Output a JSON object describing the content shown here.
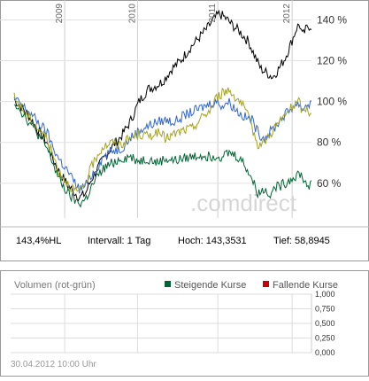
{
  "chart_data": [
    {
      "type": "line",
      "x_ticks": [
        "2009",
        "2010",
        "2011",
        "2012"
      ],
      "y_ticks": [
        "140 %",
        "120 %",
        "100 %",
        "80 %",
        "60 %"
      ],
      "y_tick_values": [
        140,
        120,
        100,
        80,
        60
      ],
      "ylim": [
        43,
        148
      ],
      "xlim": [
        0,
        1
      ],
      "grid": true,
      "watermark": ".comdirect",
      "series": [
        {
          "color": "#000000",
          "points": [
            [
              0.0,
              101
            ],
            [
              0.02,
              98
            ],
            [
              0.05,
              93
            ],
            [
              0.08,
              86
            ],
            [
              0.11,
              80
            ],
            [
              0.13,
              72
            ],
            [
              0.15,
              66
            ],
            [
              0.18,
              59
            ],
            [
              0.2,
              56
            ],
            [
              0.22,
              53
            ],
            [
              0.24,
              55
            ],
            [
              0.26,
              62
            ],
            [
              0.28,
              67
            ],
            [
              0.3,
              72
            ],
            [
              0.33,
              78
            ],
            [
              0.36,
              83
            ],
            [
              0.39,
              90
            ],
            [
              0.42,
              100
            ],
            [
              0.45,
              106
            ],
            [
              0.48,
              108
            ],
            [
              0.5,
              110
            ],
            [
              0.53,
              116
            ],
            [
              0.56,
              120
            ],
            [
              0.59,
              126
            ],
            [
              0.62,
              131
            ],
            [
              0.65,
              136
            ],
            [
              0.67,
              140
            ],
            [
              0.69,
              143
            ],
            [
              0.71,
              141
            ],
            [
              0.73,
              138
            ],
            [
              0.76,
              134
            ],
            [
              0.79,
              129
            ],
            [
              0.81,
              122
            ],
            [
              0.83,
              116
            ],
            [
              0.85,
              114
            ],
            [
              0.87,
              112
            ],
            [
              0.89,
              116
            ],
            [
              0.91,
              121
            ],
            [
              0.93,
              128
            ],
            [
              0.95,
              136
            ],
            [
              0.96,
              138
            ],
            [
              0.97,
              132
            ],
            [
              0.98,
              135
            ],
            [
              0.99,
              137
            ]
          ]
        },
        {
          "color": "#3366cc",
          "points": [
            [
              0.0,
              101
            ],
            [
              0.02,
              99
            ],
            [
              0.05,
              95
            ],
            [
              0.08,
              90
            ],
            [
              0.11,
              85
            ],
            [
              0.13,
              78
            ],
            [
              0.15,
              72
            ],
            [
              0.18,
              66
            ],
            [
              0.2,
              61
            ],
            [
              0.22,
              57
            ],
            [
              0.24,
              59
            ],
            [
              0.26,
              64
            ],
            [
              0.28,
              68
            ],
            [
              0.3,
              73
            ],
            [
              0.33,
              76
            ],
            [
              0.36,
              77
            ],
            [
              0.39,
              82
            ],
            [
              0.42,
              86
            ],
            [
              0.45,
              88
            ],
            [
              0.48,
              90
            ],
            [
              0.51,
              91
            ],
            [
              0.54,
              90
            ],
            [
              0.57,
              93
            ],
            [
              0.6,
              95
            ],
            [
              0.63,
              97
            ],
            [
              0.66,
              99
            ],
            [
              0.68,
              100
            ],
            [
              0.7,
              98
            ],
            [
              0.72,
              100
            ],
            [
              0.74,
              97
            ],
            [
              0.76,
              94
            ],
            [
              0.78,
              92
            ],
            [
              0.8,
              91
            ],
            [
              0.82,
              85
            ],
            [
              0.84,
              82
            ],
            [
              0.86,
              85
            ],
            [
              0.88,
              88
            ],
            [
              0.9,
              92
            ],
            [
              0.92,
              95
            ],
            [
              0.94,
              98
            ],
            [
              0.96,
              99
            ],
            [
              0.97,
              96
            ],
            [
              0.98,
              98
            ],
            [
              0.99,
              99
            ]
          ]
        },
        {
          "color": "#a3a322",
          "points": [
            [
              0.0,
              102
            ],
            [
              0.02,
              98
            ],
            [
              0.05,
              92
            ],
            [
              0.08,
              87
            ],
            [
              0.11,
              82
            ],
            [
              0.13,
              74
            ],
            [
              0.15,
              66
            ],
            [
              0.18,
              60
            ],
            [
              0.2,
              57
            ],
            [
              0.22,
              55
            ],
            [
              0.24,
              60
            ],
            [
              0.26,
              68
            ],
            [
              0.28,
              74
            ],
            [
              0.3,
              78
            ],
            [
              0.33,
              80
            ],
            [
              0.36,
              79
            ],
            [
              0.39,
              82
            ],
            [
              0.42,
              84
            ],
            [
              0.45,
              83
            ],
            [
              0.48,
              85
            ],
            [
              0.51,
              82
            ],
            [
              0.54,
              84
            ],
            [
              0.57,
              86
            ],
            [
              0.6,
              87
            ],
            [
              0.63,
              92
            ],
            [
              0.66,
              96
            ],
            [
              0.68,
              102
            ],
            [
              0.7,
              104
            ],
            [
              0.72,
              106
            ],
            [
              0.74,
              103
            ],
            [
              0.76,
              100
            ],
            [
              0.78,
              95
            ],
            [
              0.8,
              87
            ],
            [
              0.82,
              79
            ],
            [
              0.84,
              80
            ],
            [
              0.86,
              84
            ],
            [
              0.88,
              88
            ],
            [
              0.9,
              91
            ],
            [
              0.92,
              95
            ],
            [
              0.94,
              98
            ],
            [
              0.96,
              100
            ],
            [
              0.97,
              94
            ],
            [
              0.98,
              97
            ],
            [
              0.99,
              95
            ]
          ]
        },
        {
          "color": "#006633",
          "points": [
            [
              0.0,
              100
            ],
            [
              0.02,
              96
            ],
            [
              0.05,
              90
            ],
            [
              0.08,
              84
            ],
            [
              0.11,
              77
            ],
            [
              0.13,
              70
            ],
            [
              0.15,
              62
            ],
            [
              0.18,
              55
            ],
            [
              0.2,
              52
            ],
            [
              0.22,
              50
            ],
            [
              0.24,
              52
            ],
            [
              0.26,
              58
            ],
            [
              0.28,
              63
            ],
            [
              0.3,
              67
            ],
            [
              0.33,
              70
            ],
            [
              0.36,
              72
            ],
            [
              0.39,
              73
            ],
            [
              0.42,
              71
            ],
            [
              0.45,
              72
            ],
            [
              0.48,
              70
            ],
            [
              0.51,
              72
            ],
            [
              0.54,
              71
            ],
            [
              0.57,
              72
            ],
            [
              0.6,
              73
            ],
            [
              0.63,
              74
            ],
            [
              0.66,
              73
            ],
            [
              0.68,
              74
            ],
            [
              0.7,
              73
            ],
            [
              0.72,
              75
            ],
            [
              0.74,
              74
            ],
            [
              0.76,
              72
            ],
            [
              0.78,
              68
            ],
            [
              0.8,
              62
            ],
            [
              0.82,
              55
            ],
            [
              0.84,
              57
            ],
            [
              0.86,
              55
            ],
            [
              0.88,
              58
            ],
            [
              0.9,
              59
            ],
            [
              0.92,
              61
            ],
            [
              0.94,
              63
            ],
            [
              0.96,
              65
            ],
            [
              0.97,
              63
            ],
            [
              0.98,
              60
            ],
            [
              0.99,
              59
            ]
          ]
        }
      ]
    },
    {
      "type": "bar",
      "title": "Volumen (rot-grün)",
      "legend": [
        {
          "label": "Steigende Kurse",
          "color": "#006633"
        },
        {
          "label": "Fallende Kurse",
          "color": "#cc0000"
        }
      ],
      "y_ticks": [
        "1,000",
        "0,750",
        "0,500",
        "0,250",
        "0,000"
      ],
      "y_tick_values": [
        1.0,
        0.75,
        0.5,
        0.25,
        0.0
      ],
      "ylim": [
        0,
        1
      ],
      "grid": true
    }
  ],
  "stats": {
    "change": "143,4%HL",
    "interval": "Intervall: 1 Tag",
    "high": "Hoch: 143,3531",
    "low": "Tief: 58,8945"
  },
  "timestamp": "30.04.2012 10:00 Uhr"
}
